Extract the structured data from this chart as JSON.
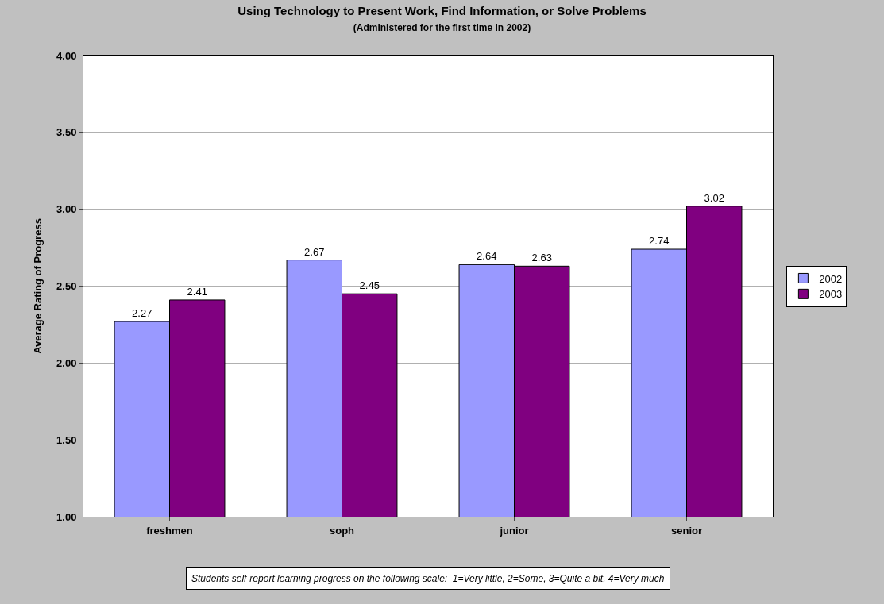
{
  "chart_data": {
    "type": "bar",
    "title": "Using Technology to Present Work, Find Information, or Solve Problems",
    "subtitle": "(Administered for the first time in 2002)",
    "ylabel": "Average Rating of Progress",
    "categories": [
      "freshmen",
      "soph",
      "junior",
      "senior"
    ],
    "series": [
      {
        "name": "2002",
        "color": "#9999ff",
        "values": [
          2.27,
          2.67,
          2.64,
          2.74
        ]
      },
      {
        "name": "2003",
        "color": "#800080",
        "values": [
          2.41,
          2.45,
          2.63,
          3.02
        ]
      }
    ],
    "ylim": [
      1,
      4
    ],
    "yticks": [
      {
        "value": 1,
        "label": "1.00"
      },
      {
        "value": 1.5,
        "label": "1.50"
      },
      {
        "value": 2,
        "label": "2.00"
      },
      {
        "value": 2.5,
        "label": "2.50"
      },
      {
        "value": 3,
        "label": "3.00"
      },
      {
        "value": 3.5,
        "label": "3.50"
      },
      {
        "value": 4,
        "label": "4.00"
      }
    ],
    "grid": "y",
    "legend": "right",
    "data_labels": true,
    "annotations": [
      "Students self-report learning progress on the following scale:  1=Very little, 2=Some, 3=Quite a bit, 4=Very much"
    ]
  }
}
